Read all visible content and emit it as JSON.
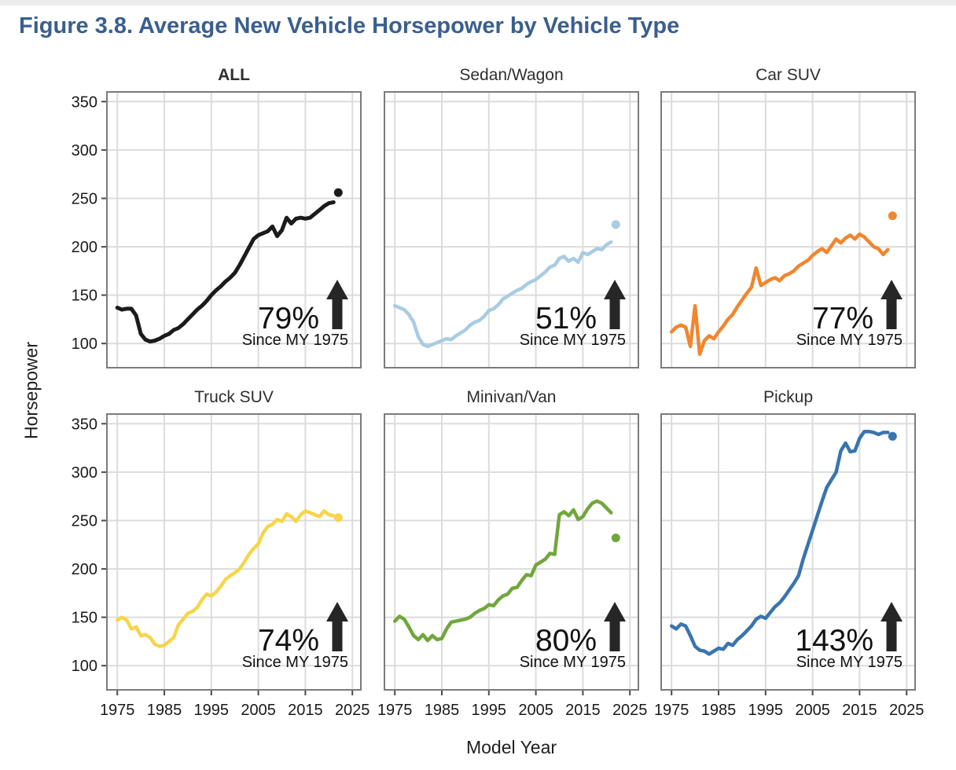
{
  "figure": {
    "title": "Figure 3.8. Average New Vehicle Horsepower by Vehicle Type",
    "title_color": "#3A5F8E"
  },
  "axes": {
    "x_label": "Model Year",
    "y_label": "Horsepower",
    "x_ticks": [
      1975,
      1985,
      1995,
      2005,
      2015,
      2025
    ],
    "y_ticks": [
      350,
      300,
      250,
      200,
      150,
      100
    ],
    "x_range": [
      1972.8,
      2026.8
    ],
    "y_range": [
      75,
      360
    ]
  },
  "chart_data": {
    "type": "line",
    "title": "Average New Vehicle Horsepower by Vehicle Type",
    "xlabel": "Model Year",
    "ylabel": "Horsepower",
    "start_year": 1975,
    "end_year": 2021,
    "dot_year": 2022,
    "grid": "on",
    "panels": [
      {
        "id": "all",
        "title": "ALL",
        "color": "#1b1b1b",
        "pct_label": "79%",
        "since_label": "Since MY 1975",
        "values": [
          137,
          135,
          136,
          136,
          129,
          110,
          104,
          102,
          103,
          105,
          108,
          110,
          114,
          116,
          120,
          125,
          130,
          135,
          139,
          144,
          150,
          155,
          159,
          164,
          168,
          173,
          181,
          190,
          199,
          208,
          212,
          214,
          216,
          221,
          211,
          217,
          230,
          224,
          229,
          230,
          229,
          230,
          234,
          238,
          242,
          245,
          246
        ],
        "dot_value": 256
      },
      {
        "id": "sedan-wagon",
        "title": "Sedan/Wagon",
        "color": "#A9CCE1",
        "pct_label": "51%",
        "since_label": "Since MY 1975",
        "values": [
          139,
          137,
          135,
          130,
          122,
          107,
          99,
          97,
          99,
          101,
          103,
          105,
          104,
          108,
          111,
          114,
          119,
          122,
          124,
          128,
          134,
          136,
          140,
          146,
          149,
          152,
          155,
          157,
          161,
          164,
          166,
          170,
          174,
          179,
          181,
          188,
          190,
          185,
          188,
          184,
          194,
          192,
          195,
          198,
          197,
          202,
          205
        ],
        "dot_value": 223
      },
      {
        "id": "car-suv",
        "title": "Car SUV",
        "color": "#F0862F",
        "pct_label": "77%",
        "since_label": "Since MY 1975",
        "values": [
          112,
          117,
          119,
          117,
          97,
          139,
          89,
          103,
          108,
          105,
          112,
          118,
          125,
          130,
          138,
          145,
          152,
          158,
          178,
          160,
          163,
          166,
          168,
          165,
          170,
          172,
          175,
          180,
          183,
          186,
          191,
          195,
          198,
          194,
          201,
          208,
          204,
          209,
          212,
          208,
          213,
          210,
          205,
          200,
          198,
          192,
          197
        ],
        "dot_value": 232
      },
      {
        "id": "truck-suv",
        "title": "Truck SUV",
        "color": "#F6D54A",
        "pct_label": "74%",
        "since_label": "Since MY 1975",
        "values": [
          147,
          150,
          147,
          138,
          140,
          131,
          132,
          129,
          122,
          120,
          121,
          125,
          129,
          142,
          148,
          154,
          156,
          160,
          168,
          174,
          172,
          176,
          182,
          189,
          193,
          196,
          200,
          207,
          215,
          221,
          226,
          237,
          244,
          246,
          251,
          249,
          257,
          254,
          249,
          256,
          260,
          258,
          256,
          254,
          260,
          256,
          255
        ],
        "dot_value": 253
      },
      {
        "id": "minivan-van",
        "title": "Minivan/Van",
        "color": "#71A63D",
        "pct_label": "80%",
        "since_label": "Since MY 1975",
        "values": [
          146,
          151,
          148,
          140,
          131,
          127,
          132,
          126,
          131,
          127,
          128,
          138,
          145,
          146,
          147,
          148,
          150,
          154,
          157,
          159,
          163,
          162,
          168,
          172,
          174,
          180,
          181,
          188,
          194,
          193,
          204,
          207,
          210,
          216,
          215,
          256,
          259,
          255,
          261,
          251,
          254,
          262,
          268,
          270,
          268,
          263,
          258
        ],
        "dot_value": 232
      },
      {
        "id": "pickup",
        "title": "Pickup",
        "color": "#3A74AE",
        "pct_label": "143%",
        "since_label": "Since MY 1975",
        "values": [
          141,
          138,
          143,
          141,
          131,
          120,
          116,
          115,
          112,
          115,
          118,
          117,
          123,
          121,
          127,
          131,
          136,
          141,
          148,
          151,
          149,
          155,
          161,
          165,
          171,
          178,
          185,
          193,
          210,
          225,
          240,
          255,
          270,
          284,
          292,
          300,
          322,
          330,
          321,
          322,
          335,
          342,
          342,
          341,
          339,
          341,
          341
        ],
        "dot_value": 337
      }
    ]
  }
}
